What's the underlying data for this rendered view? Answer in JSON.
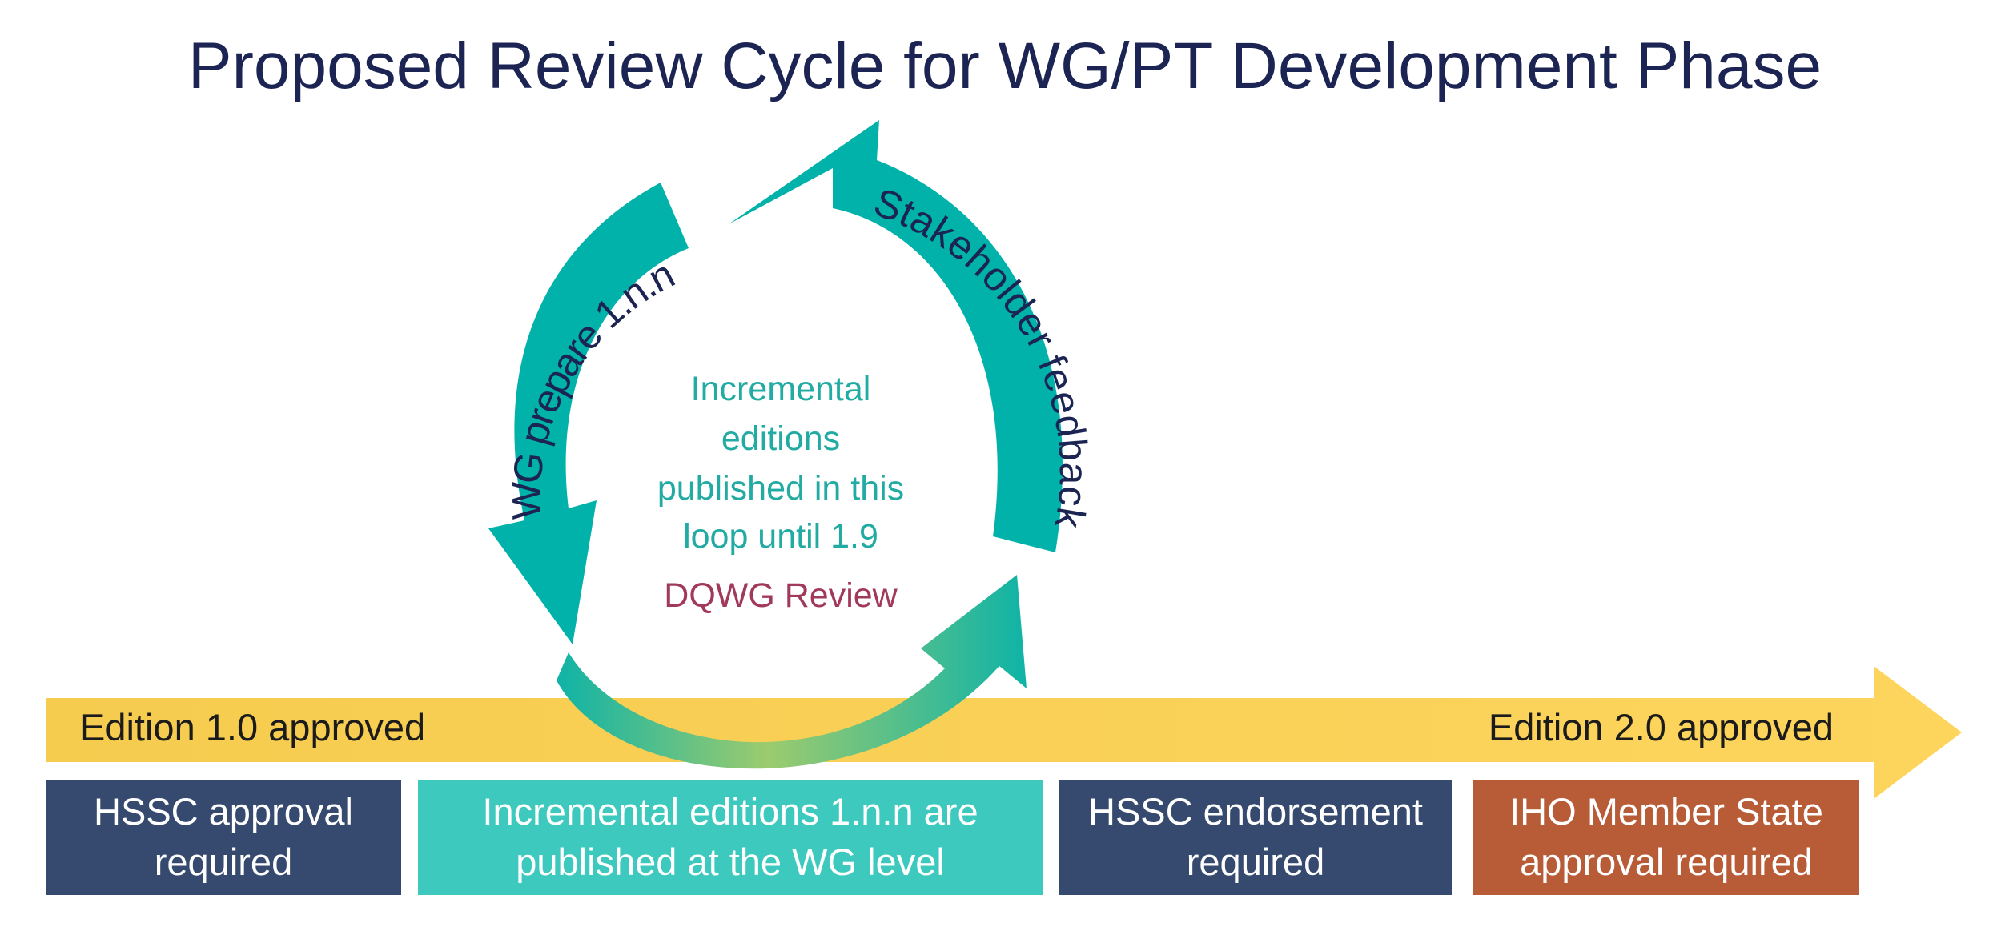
{
  "title": "Proposed Review Cycle for WG/PT Development Phase",
  "cycle": {
    "arc_left_label": "WG prepare 1.n.n",
    "arc_right_label": "Stakeholder feedback",
    "center_lines": [
      "Incremental",
      "editions",
      "published in this",
      "loop until 1.9"
    ],
    "review_label": "DQWG Review"
  },
  "timeline": {
    "start_label": "Edition 1.0 approved",
    "end_label": "Edition 2.0 approved"
  },
  "boxes": [
    {
      "lines": [
        "HSSC approval",
        "required"
      ],
      "color": "#354a6e"
    },
    {
      "lines": [
        "Incremental editions 1.n.n are",
        "published at the WG level"
      ],
      "color": "#3ec9bf"
    },
    {
      "lines": [
        "HSSC endorsement",
        "required"
      ],
      "color": "#354a6e"
    },
    {
      "lines": [
        "IHO Member State",
        "approval required"
      ],
      "color": "#b85c38"
    }
  ],
  "colors": {
    "title": "#1b2452",
    "teal_arrow": "#00b2a9",
    "timeline_arrow": "#fcd45c",
    "center_text": "#22aba3",
    "review_text": "#a13a5a"
  }
}
